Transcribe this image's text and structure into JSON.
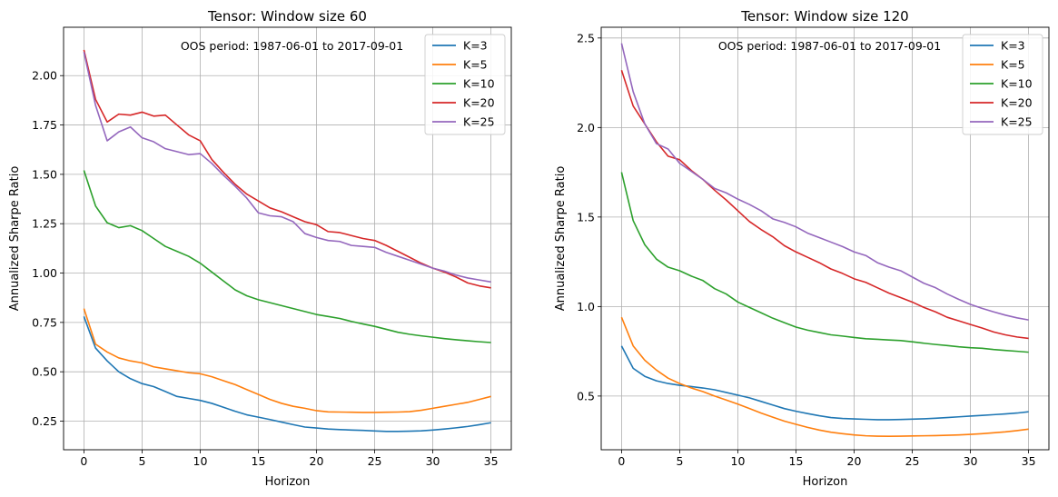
{
  "chart_data": [
    {
      "type": "line",
      "title": "Tensor: Window size 60",
      "annotation": "OOS period: 1987-06-01 to 2017-09-01",
      "xlabel": "Horizon",
      "ylabel": "Annualized Sharpe Ratio",
      "xlim": [
        -1.75,
        36.75
      ],
      "ylim": [
        0.105,
        2.245
      ],
      "xticks": [
        0,
        5,
        10,
        15,
        20,
        25,
        30,
        35
      ],
      "yticks": [
        0.25,
        0.5,
        0.75,
        1.0,
        1.25,
        1.5,
        1.75,
        2.0
      ],
      "ytick_labels": [
        "0.25",
        "0.50",
        "0.75",
        "1.00",
        "1.25",
        "1.50",
        "1.75",
        "2.00"
      ],
      "grid": true,
      "legend_position": "top-right",
      "series": [
        {
          "name": "K=3",
          "color": "#1f77b4",
          "values": [
            0.78,
            0.62,
            0.555,
            0.5,
            0.465,
            0.44,
            0.425,
            0.4,
            0.375,
            0.365,
            0.355,
            0.34,
            0.32,
            0.3,
            0.282,
            0.27,
            0.258,
            0.245,
            0.232,
            0.22,
            0.215,
            0.21,
            0.207,
            0.205,
            0.203,
            0.2,
            0.198,
            0.198,
            0.199,
            0.201,
            0.205,
            0.21,
            0.216,
            0.223,
            0.232,
            0.242
          ]
        },
        {
          "name": "K=5",
          "color": "#ff7f0e",
          "values": [
            0.82,
            0.64,
            0.6,
            0.57,
            0.555,
            0.545,
            0.525,
            0.515,
            0.505,
            0.495,
            0.49,
            0.475,
            0.455,
            0.435,
            0.41,
            0.385,
            0.36,
            0.34,
            0.325,
            0.315,
            0.303,
            0.297,
            0.296,
            0.295,
            0.294,
            0.294,
            0.295,
            0.296,
            0.298,
            0.305,
            0.315,
            0.325,
            0.335,
            0.345,
            0.36,
            0.375
          ]
        },
        {
          "name": "K=10",
          "color": "#2ca02c",
          "values": [
            1.52,
            1.34,
            1.255,
            1.23,
            1.24,
            1.215,
            1.175,
            1.135,
            1.11,
            1.085,
            1.05,
            1.005,
            0.96,
            0.915,
            0.885,
            0.865,
            0.85,
            0.835,
            0.82,
            0.805,
            0.79,
            0.78,
            0.77,
            0.755,
            0.742,
            0.73,
            0.715,
            0.7,
            0.69,
            0.682,
            0.675,
            0.668,
            0.662,
            0.657,
            0.652,
            0.648
          ]
        },
        {
          "name": "K=20",
          "color": "#d62728",
          "values": [
            2.13,
            1.88,
            1.765,
            1.805,
            1.8,
            1.815,
            1.795,
            1.8,
            1.75,
            1.7,
            1.67,
            1.575,
            1.51,
            1.45,
            1.4,
            1.365,
            1.33,
            1.31,
            1.285,
            1.26,
            1.245,
            1.21,
            1.205,
            1.19,
            1.175,
            1.165,
            1.14,
            1.11,
            1.08,
            1.05,
            1.025,
            1.005,
            0.98,
            0.95,
            0.935,
            0.925
          ]
        },
        {
          "name": "K=25",
          "color": "#9467bd",
          "values": [
            2.12,
            1.85,
            1.67,
            1.715,
            1.74,
            1.685,
            1.665,
            1.63,
            1.615,
            1.6,
            1.605,
            1.555,
            1.495,
            1.44,
            1.38,
            1.305,
            1.29,
            1.285,
            1.26,
            1.2,
            1.18,
            1.165,
            1.16,
            1.14,
            1.135,
            1.13,
            1.105,
            1.085,
            1.065,
            1.045,
            1.025,
            1.01,
            0.99,
            0.975,
            0.965,
            0.955
          ]
        }
      ]
    },
    {
      "type": "line",
      "title": "Tensor: Window size 120",
      "annotation": "OOS period: 1987-06-01 to 2017-09-01",
      "xlabel": "Horizon",
      "ylabel": "Annualized Sharpe Ratio",
      "xlim": [
        -1.75,
        36.75
      ],
      "ylim": [
        0.2,
        2.56
      ],
      "xticks": [
        0,
        5,
        10,
        15,
        20,
        25,
        30,
        35
      ],
      "yticks": [
        0.5,
        1.0,
        1.5,
        2.0,
        2.5
      ],
      "ytick_labels": [
        "0.5",
        "1.0",
        "1.5",
        "2.0",
        "2.5"
      ],
      "grid": true,
      "legend_position": "top-right",
      "series": [
        {
          "name": "K=3",
          "color": "#1f77b4",
          "values": [
            0.78,
            0.655,
            0.61,
            0.585,
            0.57,
            0.56,
            0.553,
            0.545,
            0.535,
            0.52,
            0.505,
            0.49,
            0.47,
            0.45,
            0.43,
            0.415,
            0.402,
            0.39,
            0.38,
            0.375,
            0.372,
            0.37,
            0.368,
            0.368,
            0.369,
            0.371,
            0.373,
            0.376,
            0.38,
            0.384,
            0.388,
            0.392,
            0.396,
            0.4,
            0.405,
            0.412
          ]
        },
        {
          "name": "K=5",
          "color": "#ff7f0e",
          "values": [
            0.94,
            0.78,
            0.7,
            0.645,
            0.6,
            0.57,
            0.545,
            0.525,
            0.5,
            0.478,
            0.455,
            0.43,
            0.405,
            0.382,
            0.36,
            0.342,
            0.325,
            0.31,
            0.298,
            0.29,
            0.283,
            0.278,
            0.276,
            0.275,
            0.276,
            0.277,
            0.278,
            0.279,
            0.281,
            0.283,
            0.286,
            0.29,
            0.295,
            0.3,
            0.307,
            0.315
          ]
        },
        {
          "name": "K=10",
          "color": "#2ca02c",
          "values": [
            1.75,
            1.48,
            1.345,
            1.265,
            1.22,
            1.2,
            1.17,
            1.145,
            1.1,
            1.07,
            1.025,
            0.995,
            0.965,
            0.935,
            0.91,
            0.885,
            0.868,
            0.855,
            0.842,
            0.835,
            0.827,
            0.82,
            0.817,
            0.813,
            0.81,
            0.803,
            0.795,
            0.788,
            0.782,
            0.775,
            0.77,
            0.767,
            0.76,
            0.755,
            0.75,
            0.745
          ]
        },
        {
          "name": "K=20",
          "color": "#d62728",
          "values": [
            2.32,
            2.12,
            2.02,
            1.92,
            1.84,
            1.82,
            1.76,
            1.71,
            1.65,
            1.595,
            1.535,
            1.475,
            1.43,
            1.39,
            1.34,
            1.305,
            1.275,
            1.245,
            1.21,
            1.185,
            1.155,
            1.135,
            1.105,
            1.075,
            1.05,
            1.025,
            0.995,
            0.97,
            0.94,
            0.92,
            0.9,
            0.88,
            0.858,
            0.842,
            0.83,
            0.822
          ]
        },
        {
          "name": "K=25",
          "color": "#9467bd",
          "values": [
            2.47,
            2.2,
            2.02,
            1.91,
            1.88,
            1.8,
            1.755,
            1.71,
            1.66,
            1.635,
            1.6,
            1.57,
            1.535,
            1.49,
            1.47,
            1.445,
            1.41,
            1.385,
            1.36,
            1.335,
            1.305,
            1.285,
            1.245,
            1.22,
            1.2,
            1.165,
            1.13,
            1.105,
            1.07,
            1.04,
            1.012,
            0.99,
            0.97,
            0.952,
            0.937,
            0.925
          ]
        }
      ]
    }
  ]
}
